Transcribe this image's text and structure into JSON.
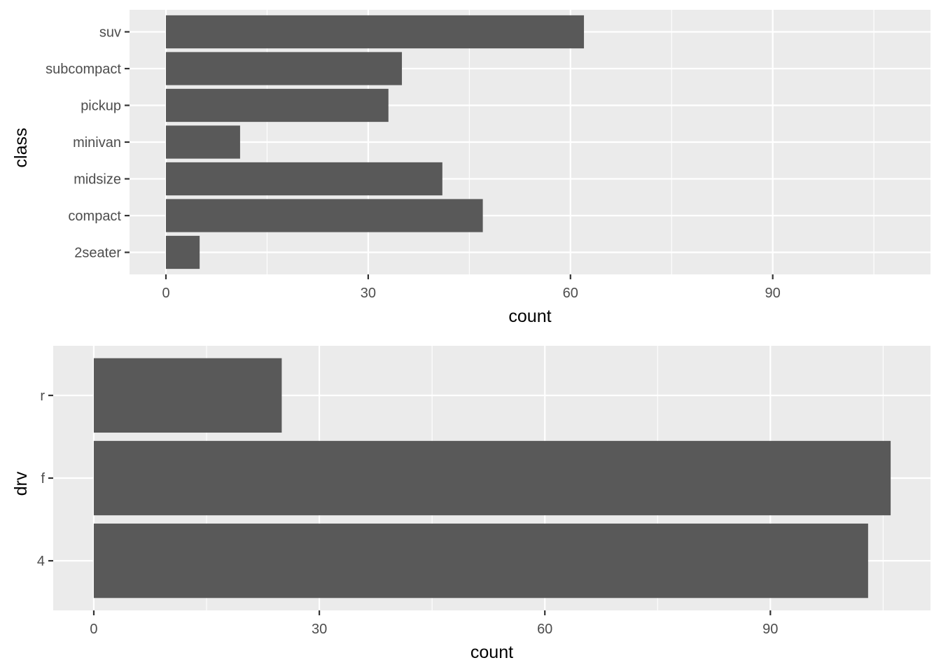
{
  "chart_data": [
    {
      "type": "bar",
      "orientation": "horizontal",
      "categories": [
        "2seater",
        "compact",
        "midsize",
        "minivan",
        "pickup",
        "subcompact",
        "suv"
      ],
      "values": [
        5,
        47,
        41,
        11,
        33,
        35,
        62
      ],
      "xlabel": "count",
      "ylabel": "class",
      "xticks": [
        0,
        30,
        60,
        90
      ],
      "xlim": [
        -5.4,
        113.4
      ],
      "grid": true,
      "bar_color": "#595959",
      "panel_background": "#EBEBEB"
    },
    {
      "type": "bar",
      "orientation": "horizontal",
      "categories": [
        "4",
        "f",
        "r"
      ],
      "values": [
        103,
        106,
        25
      ],
      "xlabel": "count",
      "ylabel": "drv",
      "xticks": [
        0,
        30,
        60,
        90
      ],
      "xlim": [
        -5.4,
        111.3
      ],
      "grid": true,
      "bar_color": "#595959",
      "panel_background": "#EBEBEB"
    }
  ]
}
